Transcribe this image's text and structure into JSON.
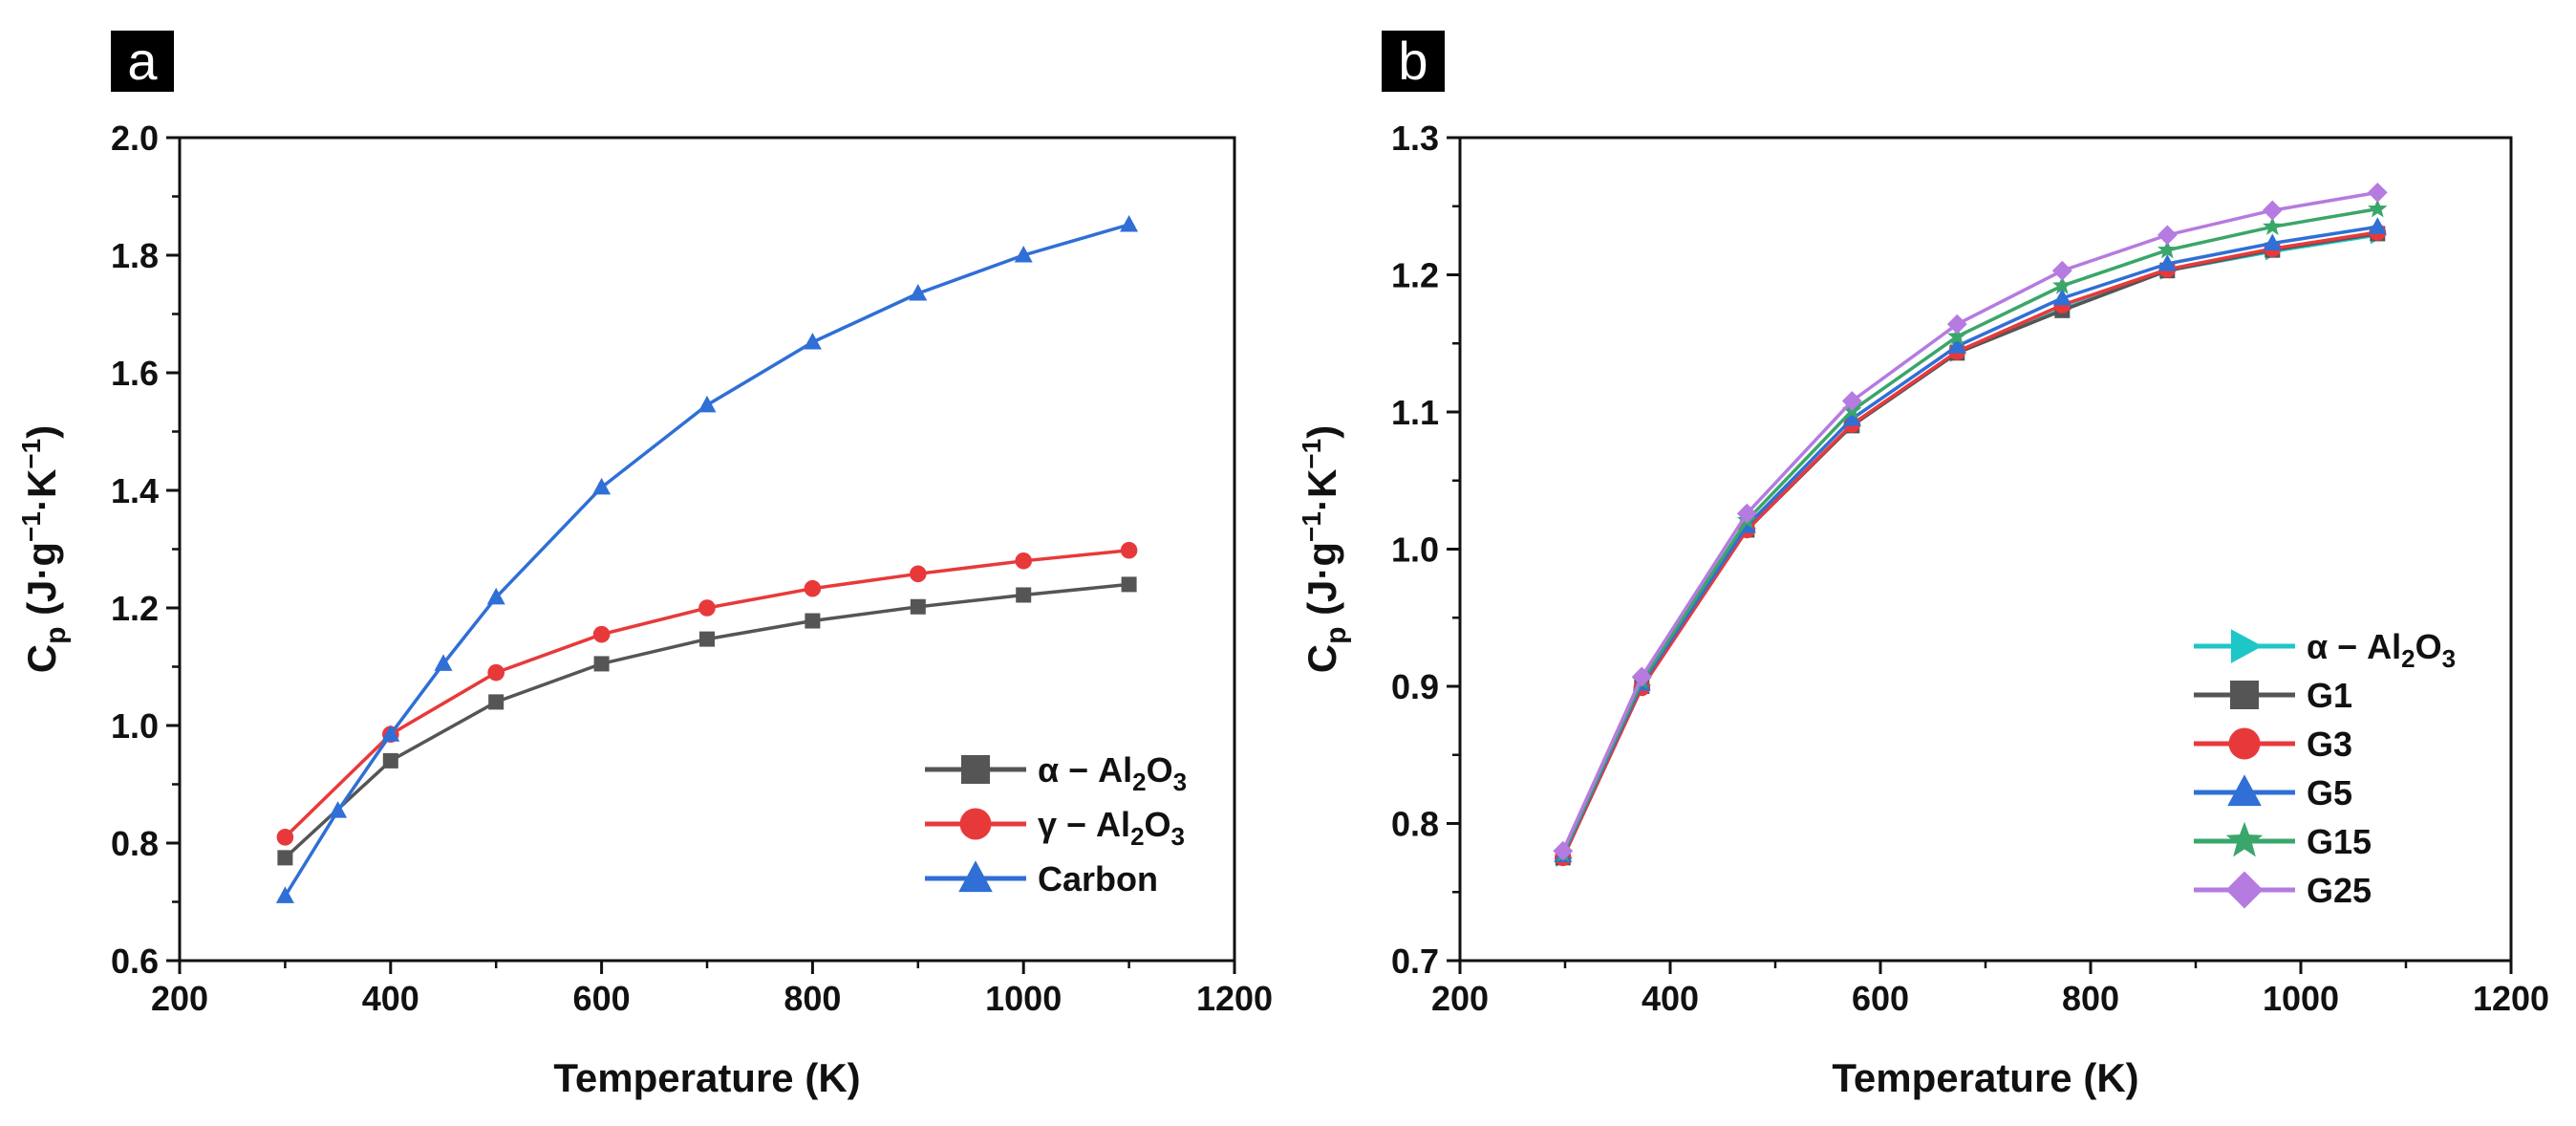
{
  "chart_data": [
    {
      "panel_label": "a",
      "type": "line",
      "xlabel": "Temperature (K)",
      "ylabel": {
        "main": "C",
        "sub": "p",
        "units": "(J·g",
        "exp1": "−1",
        "mid": "·K",
        "exp2": "−1",
        "close": ")"
      },
      "xlim": [
        200,
        1200
      ],
      "ylim": [
        0.6,
        2.0
      ],
      "xticks": [
        200,
        400,
        600,
        800,
        1000,
        1200
      ],
      "yticks": [
        0.6,
        0.8,
        1.0,
        1.2,
        1.4,
        1.6,
        1.8,
        2.0
      ],
      "xtick_labels": [
        "200",
        "400",
        "600",
        "800",
        "1000",
        "1200"
      ],
      "ytick_labels": [
        "0.6",
        "0.8",
        "1.0",
        "1.2",
        "1.4",
        "1.6",
        "1.8",
        "2.0"
      ],
      "grid": false,
      "legend_position": "bottom-right",
      "series": [
        {
          "legend": {
            "prefix": "α − Al",
            "s1": "2",
            "mid": "O",
            "s2": "3"
          },
          "color": "#555555",
          "marker": "square",
          "x": [
            300,
            400,
            500,
            600,
            700,
            800,
            900,
            1000,
            1100
          ],
          "y": [
            0.775,
            0.94,
            1.04,
            1.105,
            1.147,
            1.178,
            1.202,
            1.222,
            1.24
          ]
        },
        {
          "legend": {
            "prefix": "γ − Al",
            "s1": "2",
            "mid": "O",
            "s2": "3"
          },
          "color": "#e8393a",
          "marker": "circle",
          "x": [
            300,
            400,
            500,
            600,
            700,
            800,
            900,
            1000,
            1100
          ],
          "y": [
            0.81,
            0.985,
            1.09,
            1.155,
            1.2,
            1.233,
            1.258,
            1.28,
            1.298
          ]
        },
        {
          "legend": {
            "prefix": "Carbon",
            "s1": "",
            "mid": "",
            "s2": ""
          },
          "color": "#2f6fd6",
          "marker": "triangle",
          "x": [
            300,
            350,
            400,
            450,
            500,
            600,
            700,
            800,
            900,
            1000,
            1100
          ],
          "y": [
            0.71,
            0.855,
            0.985,
            1.105,
            1.218,
            1.405,
            1.545,
            1.652,
            1.735,
            1.8,
            1.852
          ]
        }
      ]
    },
    {
      "panel_label": "b",
      "type": "line",
      "xlabel": "Temperature (K)",
      "ylabel": {
        "main": "C",
        "sub": "p",
        "units": "(J·g",
        "exp1": "−1",
        "mid": "·K",
        "exp2": "−1",
        "close": ")"
      },
      "xlim": [
        200,
        1200
      ],
      "ylim": [
        0.7,
        1.3
      ],
      "xticks": [
        200,
        400,
        600,
        800,
        1000,
        1200
      ],
      "yticks": [
        0.7,
        0.8,
        0.9,
        1.0,
        1.1,
        1.2,
        1.3
      ],
      "xtick_labels": [
        "200",
        "400",
        "600",
        "800",
        "1000",
        "1200"
      ],
      "ytick_labels": [
        "0.7",
        "0.8",
        "0.9",
        "1.0",
        "1.1",
        "1.2",
        "1.3"
      ],
      "grid": false,
      "legend_position": "bottom-right",
      "series": [
        {
          "legend": {
            "prefix": "α − Al",
            "s1": "2",
            "mid": "O",
            "s2": "3"
          },
          "color": "#1fc6c8",
          "marker": "triangle-right",
          "x": [
            298,
            373,
            473,
            573,
            673,
            773,
            873,
            973,
            1073
          ],
          "y": [
            0.775,
            0.901,
            1.015,
            1.09,
            1.143,
            1.175,
            1.203,
            1.217,
            1.229
          ]
        },
        {
          "legend": {
            "prefix": "G1",
            "s1": "",
            "mid": "",
            "s2": ""
          },
          "color": "#555555",
          "marker": "square",
          "x": [
            298,
            373,
            473,
            573,
            673,
            773,
            873,
            973,
            1073
          ],
          "y": [
            0.775,
            0.9,
            1.014,
            1.09,
            1.143,
            1.174,
            1.203,
            1.218,
            1.23
          ]
        },
        {
          "legend": {
            "prefix": "G3",
            "s1": "",
            "mid": "",
            "s2": ""
          },
          "color": "#e8393a",
          "marker": "circle",
          "x": [
            298,
            373,
            473,
            573,
            673,
            773,
            873,
            973,
            1073
          ],
          "y": [
            0.775,
            0.899,
            1.014,
            1.091,
            1.144,
            1.178,
            1.204,
            1.219,
            1.231
          ]
        },
        {
          "legend": {
            "prefix": "G5",
            "s1": "",
            "mid": "",
            "s2": ""
          },
          "color": "#2f6fd6",
          "marker": "triangle",
          "x": [
            298,
            373,
            473,
            573,
            673,
            773,
            873,
            973,
            1073
          ],
          "y": [
            0.777,
            0.902,
            1.017,
            1.095,
            1.148,
            1.183,
            1.208,
            1.223,
            1.235
          ]
        },
        {
          "legend": {
            "prefix": "G15",
            "s1": "",
            "mid": "",
            "s2": ""
          },
          "color": "#3aa66a",
          "marker": "star",
          "x": [
            298,
            373,
            473,
            573,
            673,
            773,
            873,
            973,
            1073
          ],
          "y": [
            0.778,
            0.904,
            1.021,
            1.101,
            1.155,
            1.192,
            1.218,
            1.235,
            1.248
          ]
        },
        {
          "legend": {
            "prefix": "G25",
            "s1": "",
            "mid": "",
            "s2": ""
          },
          "color": "#b57be0",
          "marker": "diamond",
          "x": [
            298,
            373,
            473,
            573,
            673,
            773,
            873,
            973,
            1073
          ],
          "y": [
            0.78,
            0.907,
            1.026,
            1.108,
            1.164,
            1.203,
            1.229,
            1.247,
            1.26
          ]
        }
      ]
    }
  ]
}
